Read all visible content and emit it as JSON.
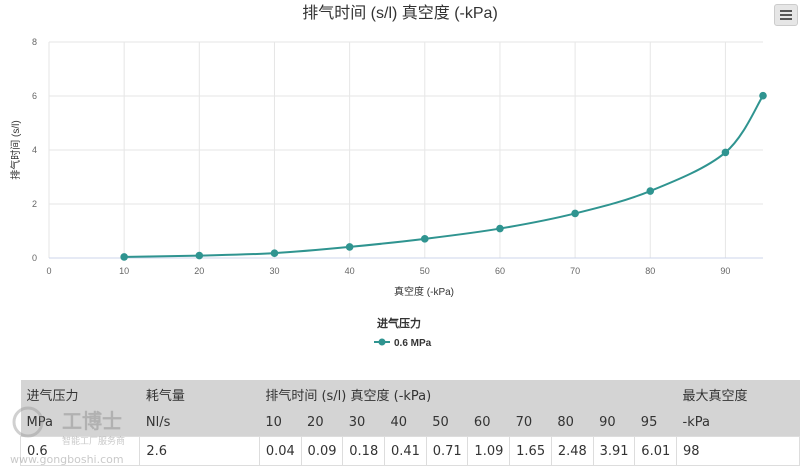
{
  "chart_data": {
    "type": "line",
    "title": "排气时间 (s/l) 真空度 (-kPa)",
    "xlabel": "真空度 (-kPa)",
    "ylabel": "排气时间 (s/l)",
    "xlim": [
      0,
      95
    ],
    "ylim": [
      0,
      8
    ],
    "x_ticks": [
      "0",
      "10",
      "20",
      "30",
      "40",
      "50",
      "60",
      "70",
      "80",
      "90"
    ],
    "y_ticks": [
      "0",
      "2",
      "4",
      "6",
      "8"
    ],
    "legend_title": "进气压力",
    "legend_position": "bottom-center",
    "grid": true,
    "series": [
      {
        "name": "0.6 MPa",
        "color": "#2f9490",
        "x": [
          10,
          20,
          30,
          40,
          50,
          60,
          70,
          80,
          90,
          95
        ],
        "y": [
          0.04,
          0.09,
          0.18,
          0.41,
          0.71,
          1.09,
          1.65,
          2.48,
          3.91,
          6.01
        ]
      }
    ]
  },
  "table": {
    "header_row1": [
      "进气压力",
      "耗气量",
      "排气时间 (s/l) 真空度 (-kPa)",
      "最大真空度"
    ],
    "header_row2": [
      "MPa",
      "Nl/s",
      "10",
      "20",
      "30",
      "40",
      "50",
      "60",
      "70",
      "80",
      "90",
      "95",
      "-kPa"
    ],
    "rows": [
      [
        "0.6",
        "2.6",
        "0.04",
        "0.09",
        "0.18",
        "0.41",
        "0.71",
        "1.09",
        "1.65",
        "2.48",
        "3.91",
        "6.01",
        "98"
      ]
    ]
  },
  "watermark": {
    "brand": "工博士",
    "tagline": "智能工厂服务商",
    "url": "www.gongboshi.com"
  },
  "icons": {
    "menu": "hamburger-menu-icon"
  }
}
